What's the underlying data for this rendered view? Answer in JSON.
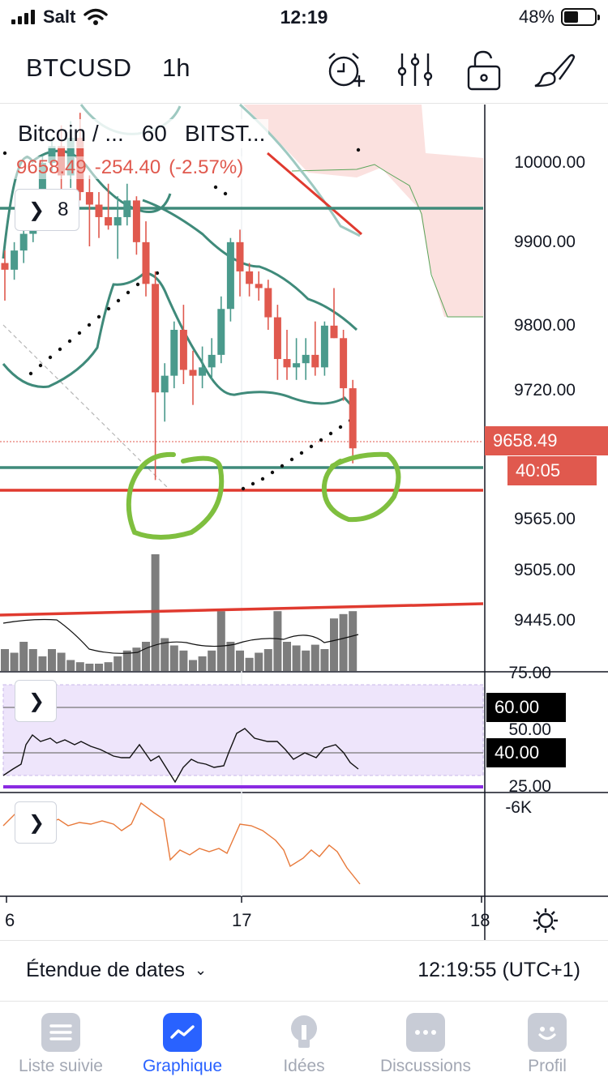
{
  "status_bar": {
    "carrier": "Salt",
    "time": "12:19",
    "battery": "48%",
    "battery_level": 0.48
  },
  "toolbar": {
    "symbol": "BTCUSD",
    "interval": "1h",
    "icons": [
      "alarm-add-icon",
      "indicators-icon",
      "unlock-icon",
      "drawing-brush-icon"
    ]
  },
  "legend": {
    "title": "Bitcoin / ...",
    "interval": "60",
    "exchange": "BITST...",
    "price": "9658.49",
    "change": "-254.40",
    "change_pct": "(-2.57%)"
  },
  "indicators": {
    "main_count": "8"
  },
  "price_axis": [
    "10000.00",
    "9900.00",
    "9800.00",
    "9720.00",
    "9565.00",
    "9505.00",
    "9445.00"
  ],
  "price_tag": {
    "value": "9658.49",
    "countdown": "40:05",
    "color": "#e0594e"
  },
  "rsi_axis": {
    "labels": [
      "75.00",
      "50.00",
      "25.00"
    ],
    "upper": "60.00",
    "lower": "40.00"
  },
  "obv_axis": {
    "label": "-6K"
  },
  "time_axis": [
    "6",
    "17",
    "18"
  ],
  "date_bar": {
    "range_label": "Étendue de dates",
    "clock": "12:19:55 (UTC+1)"
  },
  "tabs": [
    {
      "label": "Liste suivie",
      "icon": "list-icon",
      "active": false
    },
    {
      "label": "Graphique",
      "icon": "chart-icon",
      "active": true
    },
    {
      "label": "Idées",
      "icon": "lightbulb-icon",
      "active": false
    },
    {
      "label": "Discussions",
      "icon": "chat-icon",
      "active": false
    },
    {
      "label": "Profil",
      "icon": "profile-icon",
      "active": false
    }
  ],
  "colors": {
    "up": "#4a9a8c",
    "down": "#e0594e",
    "support_line": "#3f8a7a",
    "resistance_line": "#e03a2f",
    "annotation": "#7fbf3f",
    "rsi_band": "#eee5fb",
    "obv_line": "#e8793a"
  },
  "chart_data": {
    "type": "candlestick",
    "ylim": [
      9400,
      10080
    ],
    "candles": [
      {
        "o": 9880,
        "h": 9895,
        "l": 9835,
        "c": 9872
      },
      {
        "o": 9872,
        "h": 9905,
        "l": 9860,
        "c": 9895
      },
      {
        "o": 9895,
        "h": 9920,
        "l": 9880,
        "c": 9915
      },
      {
        "o": 9915,
        "h": 9960,
        "l": 9905,
        "c": 9950
      },
      {
        "o": 9950,
        "h": 10010,
        "l": 9945,
        "c": 10000
      },
      {
        "o": 10000,
        "h": 10030,
        "l": 9990,
        "c": 10020
      },
      {
        "o": 10020,
        "h": 10045,
        "l": 9960,
        "c": 9985
      },
      {
        "o": 9985,
        "h": 10050,
        "l": 9970,
        "c": 10030
      },
      {
        "o": 10030,
        "h": 10060,
        "l": 9955,
        "c": 9965
      },
      {
        "o": 9965,
        "h": 9985,
        "l": 9900,
        "c": 9950
      },
      {
        "o": 9950,
        "h": 9965,
        "l": 9910,
        "c": 9935
      },
      {
        "o": 9935,
        "h": 9975,
        "l": 9920,
        "c": 9925
      },
      {
        "o": 9925,
        "h": 9960,
        "l": 9885,
        "c": 9935
      },
      {
        "o": 9935,
        "h": 9975,
        "l": 9925,
        "c": 9955
      },
      {
        "o": 9955,
        "h": 9960,
        "l": 9890,
        "c": 9905
      },
      {
        "o": 9905,
        "h": 9930,
        "l": 9840,
        "c": 9855
      },
      {
        "o": 9855,
        "h": 9870,
        "l": 9620,
        "c": 9725
      },
      {
        "o": 9725,
        "h": 9760,
        "l": 9690,
        "c": 9745
      },
      {
        "o": 9745,
        "h": 9810,
        "l": 9730,
        "c": 9800
      },
      {
        "o": 9800,
        "h": 9830,
        "l": 9735,
        "c": 9752
      },
      {
        "o": 9752,
        "h": 9775,
        "l": 9710,
        "c": 9745
      },
      {
        "o": 9745,
        "h": 9780,
        "l": 9730,
        "c": 9755
      },
      {
        "o": 9755,
        "h": 9790,
        "l": 9740,
        "c": 9770
      },
      {
        "o": 9770,
        "h": 9840,
        "l": 9760,
        "c": 9825
      },
      {
        "o": 9825,
        "h": 9910,
        "l": 9810,
        "c": 9905
      },
      {
        "o": 9905,
        "h": 9920,
        "l": 9840,
        "c": 9870
      },
      {
        "o": 9870,
        "h": 9880,
        "l": 9840,
        "c": 9855
      },
      {
        "o": 9855,
        "h": 9870,
        "l": 9835,
        "c": 9850
      },
      {
        "o": 9850,
        "h": 9860,
        "l": 9800,
        "c": 9815
      },
      {
        "o": 9815,
        "h": 9830,
        "l": 9740,
        "c": 9765
      },
      {
        "o": 9765,
        "h": 9800,
        "l": 9740,
        "c": 9755
      },
      {
        "o": 9755,
        "h": 9790,
        "l": 9740,
        "c": 9760
      },
      {
        "o": 9760,
        "h": 9790,
        "l": 9740,
        "c": 9770
      },
      {
        "o": 9770,
        "h": 9810,
        "l": 9745,
        "c": 9755
      },
      {
        "o": 9755,
        "h": 9810,
        "l": 9745,
        "c": 9805
      },
      {
        "o": 9805,
        "h": 9850,
        "l": 9790,
        "c": 9790
      },
      {
        "o": 9790,
        "h": 9800,
        "l": 9715,
        "c": 9730
      },
      {
        "o": 9730,
        "h": 9740,
        "l": 9640,
        "c": 9658
      }
    ],
    "volumes": [
      30,
      25,
      40,
      30,
      20,
      30,
      25,
      15,
      12,
      10,
      10,
      12,
      20,
      28,
      32,
      40,
      160,
      45,
      35,
      28,
      15,
      20,
      28,
      82,
      40,
      28,
      18,
      25,
      30,
      82,
      40,
      35,
      28,
      36,
      30,
      72,
      78,
      82
    ],
    "rsi_levels": {
      "upper": 60,
      "lower": 40
    },
    "support_levels": [
      9603,
      9585,
      9935
    ],
    "annotation_marks": 2
  }
}
